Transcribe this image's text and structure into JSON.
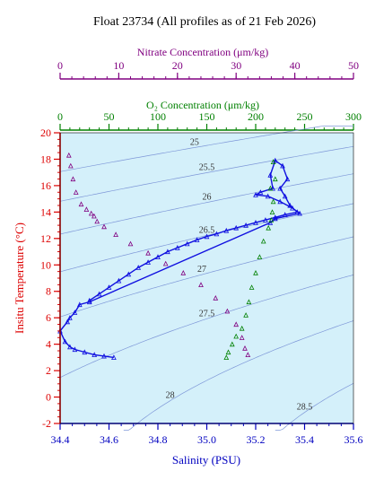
{
  "chart_data": {
    "type": "scatter",
    "title": "Float 23734  (All profiles as of 21 Feb 2026)",
    "xlabel": "Salinity (PSU)",
    "ylabel": "Insitu Temperature (°C)",
    "xlim": [
      34.4,
      35.6
    ],
    "ylim": [
      -2,
      20
    ],
    "x_ticks": [
      "34.4",
      "34.6",
      "34.8",
      "35.0",
      "35.2",
      "35.4",
      "35.6"
    ],
    "y_ticks": [
      "-2",
      "0",
      "2",
      "4",
      "6",
      "8",
      "10",
      "12",
      "14",
      "16",
      "18",
      "20"
    ],
    "grid": false,
    "background_color": "#d4f0fa",
    "density_contours": [
      {
        "label": "25",
        "sigma": 25.0
      },
      {
        "label": "25.5",
        "sigma": 25.5
      },
      {
        "label": "26",
        "sigma": 26.0
      },
      {
        "label": "26.5",
        "sigma": 26.5
      },
      {
        "label": "27",
        "sigma": 27.0
      },
      {
        "label": "27.5",
        "sigma": 27.5
      },
      {
        "label": "28",
        "sigma": 28.0
      },
      {
        "label": "28.5",
        "sigma": 28.5
      }
    ],
    "secondary_axes": [
      {
        "label": "Nitrate Concentration (μm/kg)",
        "range": [
          0,
          50
        ],
        "ticks": [
          "0",
          "10",
          "20",
          "30",
          "40",
          "50"
        ],
        "color": "#800080"
      },
      {
        "label": "O₂ Concentration (μm/kg)",
        "range": [
          0,
          300
        ],
        "ticks": [
          "0",
          "50",
          "100",
          "150",
          "200",
          "250",
          "300"
        ],
        "color": "#008000"
      }
    ],
    "series": [
      {
        "name": "",
        "axis": "Salinity",
        "color": "#1010e0",
        "points": [
          [
            34.52,
            7.3
          ],
          [
            34.56,
            7.8
          ],
          [
            34.6,
            8.3
          ],
          [
            34.64,
            8.8
          ],
          [
            34.68,
            9.3
          ],
          [
            34.72,
            9.8
          ],
          [
            34.76,
            10.2
          ],
          [
            34.8,
            10.6
          ],
          [
            34.84,
            11.0
          ],
          [
            34.88,
            11.3
          ],
          [
            34.92,
            11.6
          ],
          [
            34.96,
            11.9
          ],
          [
            35.0,
            12.15
          ],
          [
            35.04,
            12.35
          ],
          [
            35.08,
            12.6
          ],
          [
            35.12,
            12.8
          ],
          [
            35.16,
            13.0
          ],
          [
            35.2,
            13.2
          ],
          [
            35.24,
            13.4
          ],
          [
            35.28,
            13.6
          ],
          [
            35.32,
            13.8
          ],
          [
            35.37,
            14.0
          ],
          [
            35.34,
            14.5
          ],
          [
            35.32,
            15.2
          ],
          [
            35.3,
            15.8
          ],
          [
            35.33,
            16.5
          ],
          [
            35.31,
            17.5
          ],
          [
            35.28,
            17.9
          ],
          [
            35.26,
            16.8
          ],
          [
            35.27,
            15.8
          ],
          [
            35.22,
            15.5
          ],
          [
            35.2,
            15.3
          ],
          [
            35.25,
            15.2
          ],
          [
            35.3,
            14.8
          ],
          [
            35.35,
            14.3
          ],
          [
            35.38,
            13.9
          ],
          [
            35.28,
            13.5
          ],
          [
            35.26,
            13.2
          ],
          [
            34.52,
            7.2
          ],
          [
            34.48,
            7.0
          ],
          [
            34.46,
            6.4
          ],
          [
            34.44,
            6.0
          ],
          [
            34.43,
            5.7
          ],
          [
            34.4,
            5.0
          ],
          [
            34.42,
            4.2
          ],
          [
            34.44,
            3.8
          ],
          [
            34.46,
            3.6
          ],
          [
            34.5,
            3.4
          ],
          [
            34.54,
            3.2
          ],
          [
            34.58,
            3.1
          ],
          [
            34.62,
            3.0
          ]
        ]
      },
      {
        "name": "",
        "axis": "O₂ Concentration (μm/kg)",
        "color": "#008000",
        "points": [
          [
            218,
            17.8
          ],
          [
            220,
            16.5
          ],
          [
            215,
            15.8
          ],
          [
            218,
            14.8
          ],
          [
            217,
            14.0
          ],
          [
            216,
            13.4
          ],
          [
            213,
            12.8
          ],
          [
            208,
            11.8
          ],
          [
            204,
            10.6
          ],
          [
            200,
            9.4
          ],
          [
            196,
            8.3
          ],
          [
            193,
            7.2
          ],
          [
            190,
            6.2
          ],
          [
            186,
            5.2
          ],
          [
            180,
            4.6
          ],
          [
            176,
            4.0
          ],
          [
            172,
            3.4
          ],
          [
            170,
            3.0
          ]
        ]
      },
      {
        "name": "",
        "axis": "Nitrate Concentration (μm/kg)",
        "color": "#800080",
        "points": [
          [
            1.5,
            18.3
          ],
          [
            1.8,
            17.5
          ],
          [
            2.2,
            16.5
          ],
          [
            2.7,
            15.5
          ],
          [
            3.6,
            14.6
          ],
          [
            4.5,
            14.2
          ],
          [
            5.3,
            13.9
          ],
          [
            5.8,
            13.7
          ],
          [
            6.3,
            13.3
          ],
          [
            7.5,
            12.9
          ],
          [
            9.5,
            12.3
          ],
          [
            12.0,
            11.6
          ],
          [
            15.0,
            10.9
          ],
          [
            18.0,
            10.1
          ],
          [
            21.0,
            9.4
          ],
          [
            24.0,
            8.5
          ],
          [
            26.5,
            7.5
          ],
          [
            28.5,
            6.5
          ],
          [
            30.0,
            5.5
          ],
          [
            31.0,
            4.5
          ],
          [
            31.5,
            3.7
          ],
          [
            32.0,
            3.2
          ]
        ]
      }
    ]
  }
}
